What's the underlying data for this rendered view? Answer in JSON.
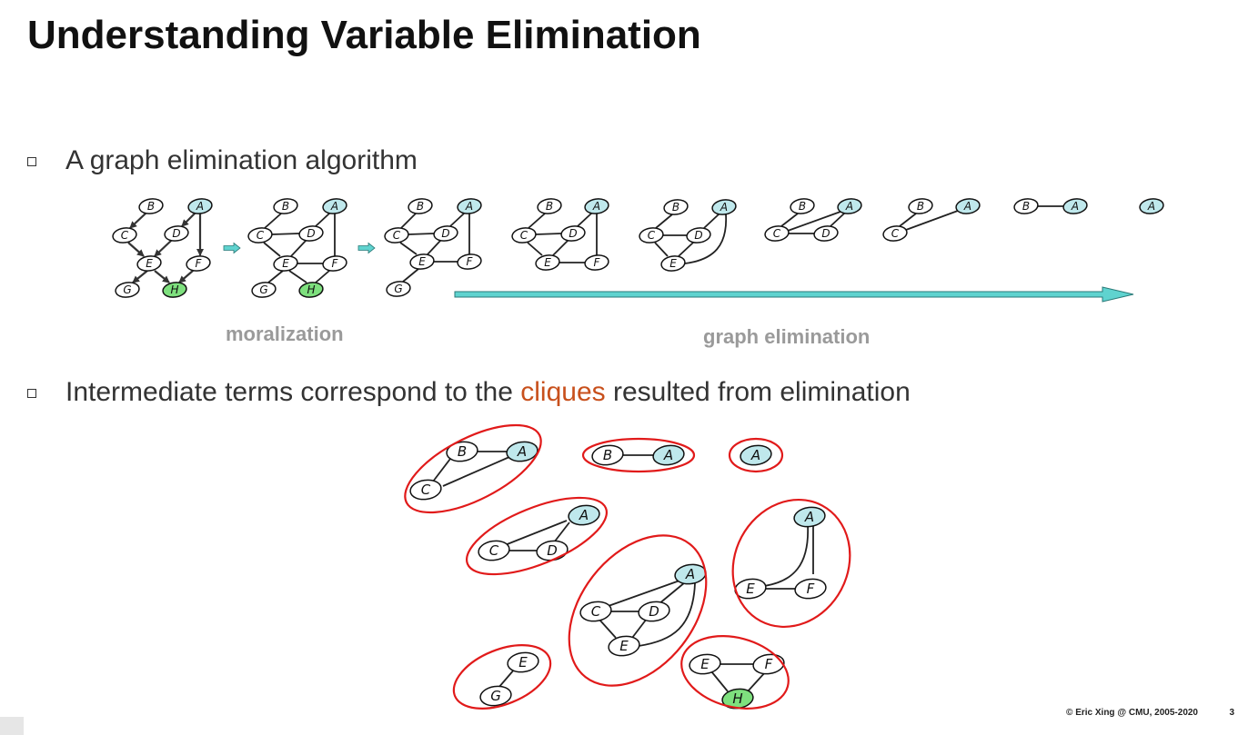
{
  "slide": {
    "title": "Understanding Variable Elimination",
    "bullet1": "A graph elimination algorithm",
    "bullet2_pre": "Intermediate terms correspond to the ",
    "bullet2_hl": "cliques",
    "bullet2_post": " resulted from elimination",
    "caption_left": "moralization",
    "caption_right": "graph elimination",
    "footer": "© Eric Xing @ CMU, 2005-2020",
    "page_number": "3"
  },
  "node_labels": [
    "A",
    "B",
    "C",
    "D",
    "E",
    "F",
    "G",
    "H"
  ],
  "colors": {
    "query_node_fill": "#bfe8ec",
    "evidence_node_fill": "#7ee07e",
    "clique_outline": "#e11a1a",
    "arrow_fill": "#5fd3cf",
    "highlight_text": "#c8501c"
  }
}
